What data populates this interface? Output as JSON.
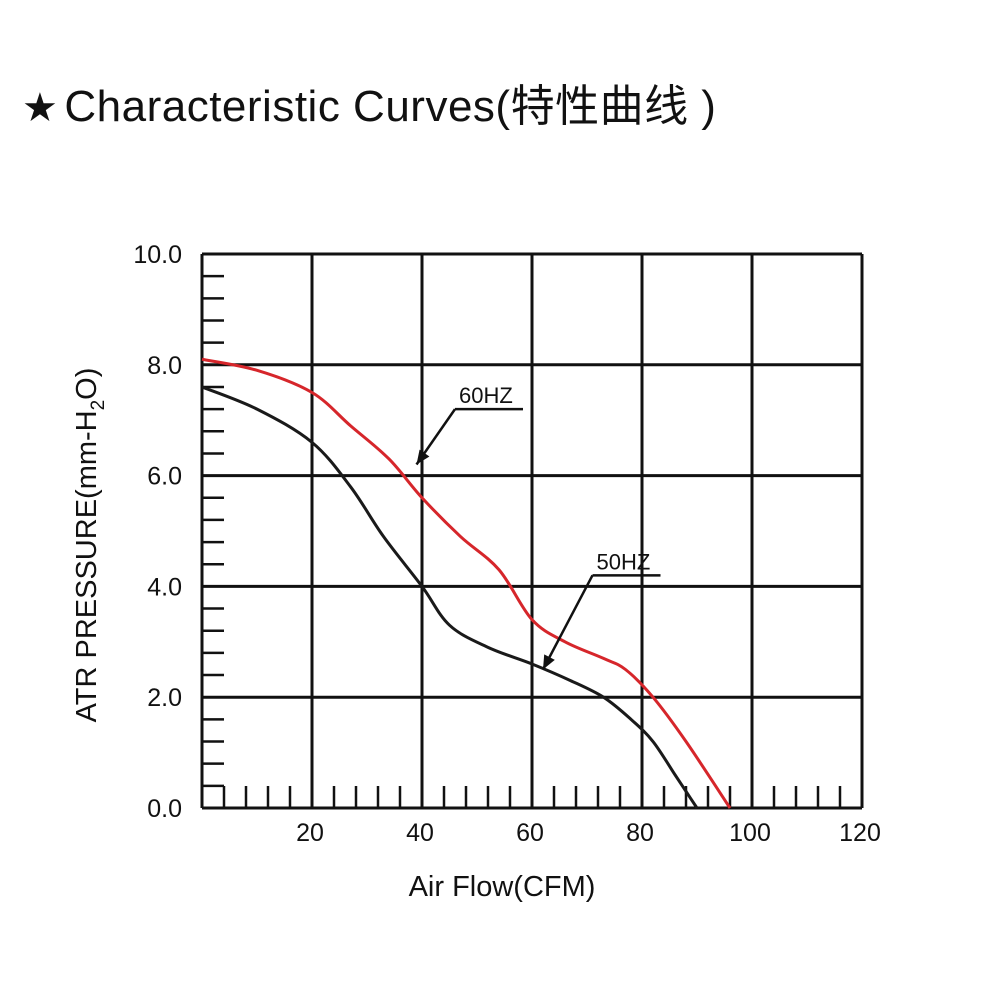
{
  "title": {
    "star": "★",
    "text": "Characteristic Curves(特性曲线 )"
  },
  "chart_data": {
    "type": "line",
    "title": "Characteristic Curves(特性曲线 )",
    "xlabel": "Air Flow(CFM)",
    "ylabel_main": "ATR PRESSURE(mm-H",
    "ylabel_sub": "2",
    "ylabel_end": "O)",
    "xlim": [
      0,
      120
    ],
    "ylim": [
      0,
      10
    ],
    "x_ticks": [
      "20",
      "40",
      "60",
      "80",
      "100",
      "120"
    ],
    "y_ticks": [
      "0.0",
      "2.0",
      "4.0",
      "6.0",
      "8.0",
      "10.0"
    ],
    "grid": true,
    "series": [
      {
        "name": "60HZ",
        "color": "#d6262b",
        "x": [
          0,
          10,
          20,
          27,
          34,
          40,
          47,
          54,
          60,
          66,
          73,
          77,
          82,
          88,
          96
        ],
        "y": [
          8.1,
          7.9,
          7.5,
          6.9,
          6.3,
          5.6,
          4.9,
          4.3,
          3.4,
          3.0,
          2.7,
          2.5,
          2.0,
          1.2,
          0.0
        ]
      },
      {
        "name": "50HZ",
        "color": "#1a1a1a",
        "x": [
          0,
          10,
          20,
          27,
          33,
          40,
          45,
          52,
          60,
          67,
          73,
          78,
          82,
          86,
          88,
          90
        ],
        "y": [
          7.6,
          7.2,
          6.6,
          5.8,
          4.9,
          4.0,
          3.3,
          2.9,
          2.6,
          2.3,
          2.0,
          1.6,
          1.2,
          0.6,
          0.3,
          0.0
        ]
      }
    ],
    "annotations": [
      {
        "text": "60HZ",
        "series": "60HZ",
        "point_x": 39,
        "point_y": 6.2,
        "text_x": 46,
        "text_y": 7.2
      },
      {
        "text": "50HZ",
        "series": "50HZ",
        "point_x": 62,
        "point_y": 2.5,
        "text_x": 71,
        "text_y": 4.2
      }
    ],
    "colors": {
      "grid": "#111111",
      "red_curve": "#d6262b",
      "black_curve": "#1a1a1a"
    }
  }
}
